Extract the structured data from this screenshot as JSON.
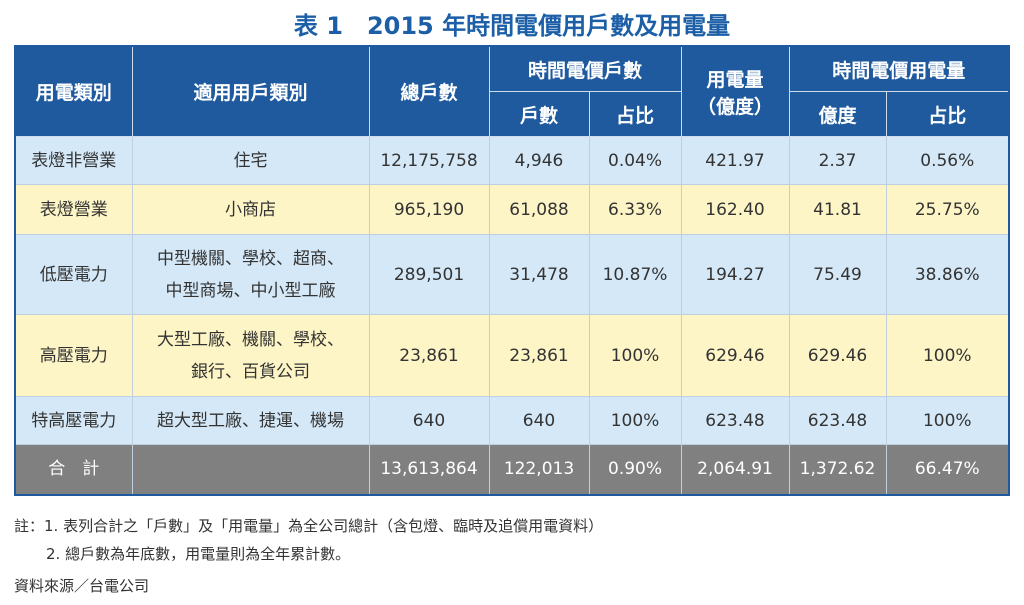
{
  "title": "表 1　2015 年時間電價用戶數及用電量",
  "table": {
    "header": {
      "category": "用電類別",
      "users": "適用用戶類別",
      "total": "總戶數",
      "tou_count": "時間電價戶數",
      "count": "戶數",
      "share": "占比",
      "usage": "用電量",
      "usage_unit": "（億度）",
      "tou_usage": "時間電價用電量",
      "usage_tou": "億度",
      "share_tou": "占比"
    },
    "rows": [
      [
        "表燈非營業",
        "住宅",
        "12,175,758",
        "4,946",
        "0.04%",
        "421.97",
        "2.37",
        "0.56%"
      ],
      [
        "表燈營業",
        "小商店",
        "965,190",
        "61,088",
        "6.33%",
        "162.40",
        "41.81",
        "25.75%"
      ],
      [
        "低壓電力",
        "中型機關、學校、超商、\n中型商場、中小型工廠",
        "289,501",
        "31,478",
        "10.87%",
        "194.27",
        "75.49",
        "38.86%"
      ],
      [
        "高壓電力",
        "大型工廠、機關、學校、\n銀行、百貨公司",
        "23,861",
        "23,861",
        "100%",
        "629.46",
        "629.46",
        "100%"
      ],
      [
        "特高壓電力",
        "超大型工廠、捷運、機場",
        "640",
        "640",
        "100%",
        "623.48",
        "623.48",
        "100%"
      ]
    ],
    "total": {
      "label": "合　計",
      "values": [
        "13,613,864",
        "122,013",
        "0.90%",
        "2,064.91",
        "1,372.62",
        "66.47%"
      ]
    }
  },
  "notes": {
    "label": "註：",
    "items": [
      "1. 表列合計之「戶數」及「用電量」為全公司總計（含包燈、臨時及追償用電資料）",
      "2. 總戶數為年底數，用電量則為全年累計數。"
    ]
  },
  "source": "資料來源／台電公司"
}
